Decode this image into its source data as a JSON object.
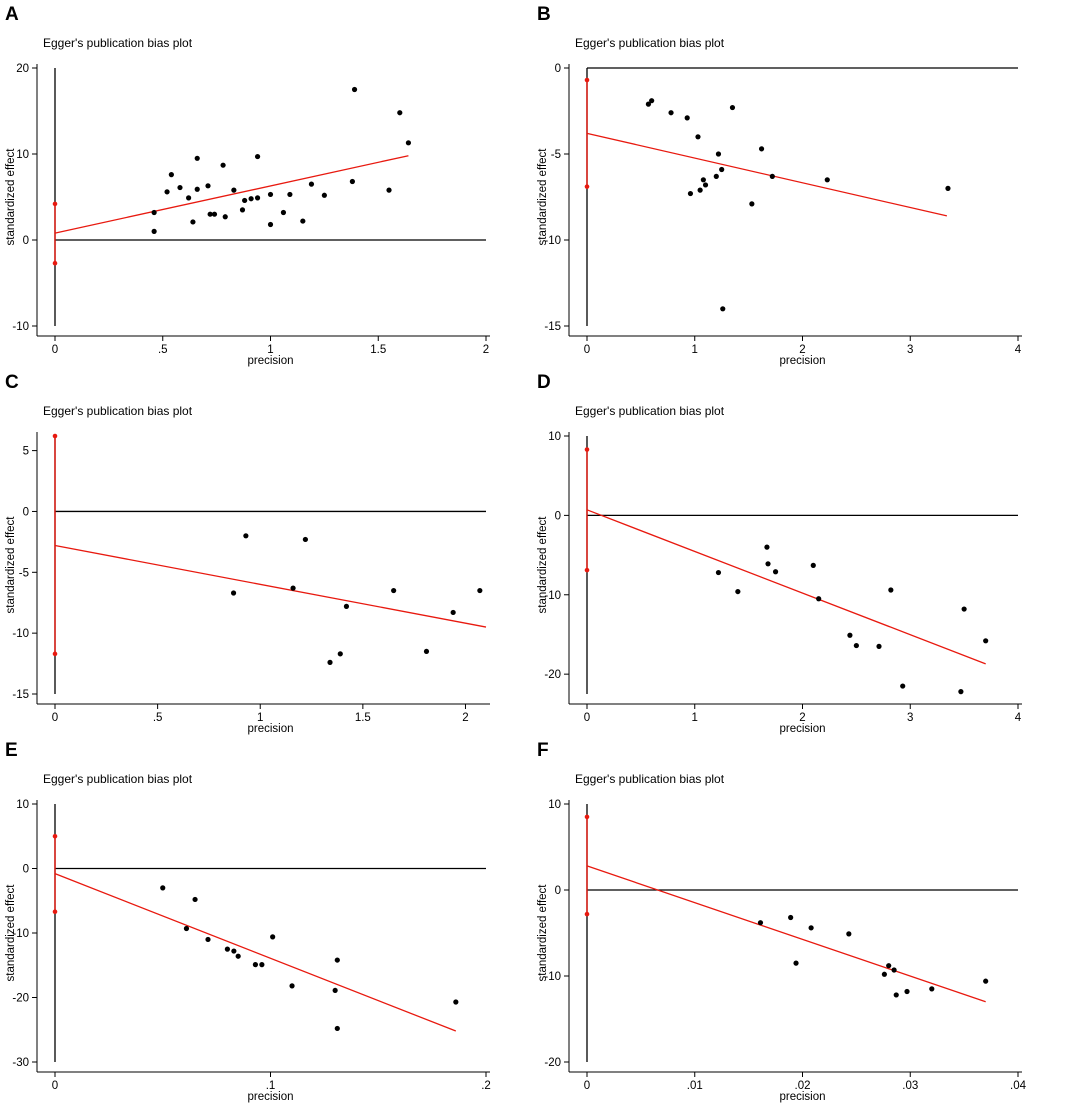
{
  "chart_data": [
    {
      "type": "scatter",
      "panel_label": "A",
      "title": "Egger's publication bias plot",
      "xlabel": "precision",
      "ylabel": "standardized effect",
      "xlim": [
        0,
        2
      ],
      "ylim": [
        -10,
        20
      ],
      "xticks": [
        {
          "v": 0,
          "label": "0"
        },
        {
          "v": 0.5,
          "label": ".5"
        },
        {
          "v": 1,
          "label": "1"
        },
        {
          "v": 1.5,
          "label": "1.5"
        },
        {
          "v": 2,
          "label": "2"
        }
      ],
      "yticks": [
        {
          "v": -10,
          "label": "-10"
        },
        {
          "v": 0,
          "label": "0"
        },
        {
          "v": 10,
          "label": "10"
        },
        {
          "v": 20,
          "label": "20"
        }
      ],
      "vline": {
        "x": 0,
        "ymin": -10,
        "ymax": 20
      },
      "hline": {
        "y": 0,
        "xmin": 0,
        "xmax": 2
      },
      "ci": [
        -2.7,
        4.2
      ],
      "regression": {
        "x1": 0,
        "y1": 0.8,
        "x2": 1.64,
        "y2": 9.8
      },
      "points": [
        [
          0.46,
          1.0
        ],
        [
          0.46,
          3.2
        ],
        [
          0.52,
          5.6
        ],
        [
          0.54,
          7.6
        ],
        [
          0.58,
          6.1
        ],
        [
          0.62,
          4.9
        ],
        [
          0.64,
          2.1
        ],
        [
          0.66,
          5.9
        ],
        [
          0.66,
          9.5
        ],
        [
          0.71,
          6.3
        ],
        [
          0.72,
          3.0
        ],
        [
          0.74,
          3.0
        ],
        [
          0.78,
          8.7
        ],
        [
          0.79,
          2.7
        ],
        [
          0.83,
          5.8
        ],
        [
          0.87,
          3.5
        ],
        [
          0.88,
          4.6
        ],
        [
          0.91,
          4.8
        ],
        [
          0.94,
          4.9
        ],
        [
          0.94,
          9.7
        ],
        [
          1.0,
          1.8
        ],
        [
          1.0,
          5.3
        ],
        [
          1.06,
          3.2
        ],
        [
          1.09,
          5.3
        ],
        [
          1.15,
          2.2
        ],
        [
          1.19,
          6.5
        ],
        [
          1.25,
          5.2
        ],
        [
          1.38,
          6.8
        ],
        [
          1.39,
          17.5
        ],
        [
          1.55,
          5.8
        ],
        [
          1.6,
          14.8
        ],
        [
          1.64,
          11.3
        ]
      ]
    },
    {
      "type": "scatter",
      "panel_label": "B",
      "title": "Egger's publication bias plot",
      "xlabel": "precision",
      "ylabel": "standardized effect",
      "xlim": [
        0,
        4
      ],
      "ylim": [
        -15,
        0
      ],
      "xticks": [
        {
          "v": 0,
          "label": "0"
        },
        {
          "v": 1,
          "label": "1"
        },
        {
          "v": 2,
          "label": "2"
        },
        {
          "v": 3,
          "label": "3"
        },
        {
          "v": 4,
          "label": "4"
        }
      ],
      "yticks": [
        {
          "v": -15,
          "label": "-15"
        },
        {
          "v": -10,
          "label": "-10"
        },
        {
          "v": -5,
          "label": "-5"
        },
        {
          "v": 0,
          "label": "0"
        }
      ],
      "vline": {
        "x": 0,
        "ymin": -15,
        "ymax": 0
      },
      "hline": {
        "y": 0,
        "xmin": 0,
        "xmax": 4
      },
      "ci": [
        -6.9,
        -0.7
      ],
      "regression": {
        "x1": 0,
        "y1": -3.8,
        "x2": 3.34,
        "y2": -8.6
      },
      "points": [
        [
          0.57,
          -2.1
        ],
        [
          0.6,
          -1.9
        ],
        [
          0.78,
          -2.6
        ],
        [
          0.93,
          -2.9
        ],
        [
          0.96,
          -7.3
        ],
        [
          1.03,
          -4.0
        ],
        [
          1.05,
          -7.1
        ],
        [
          1.08,
          -6.5
        ],
        [
          1.1,
          -6.8
        ],
        [
          1.2,
          -6.3
        ],
        [
          1.22,
          -5.0
        ],
        [
          1.25,
          -5.9
        ],
        [
          1.26,
          -14.0
        ],
        [
          1.35,
          -2.3
        ],
        [
          1.53,
          -7.9
        ],
        [
          1.62,
          -4.7
        ],
        [
          1.72,
          -6.3
        ],
        [
          2.23,
          -6.5
        ],
        [
          3.35,
          -7.0
        ]
      ]
    },
    {
      "type": "scatter",
      "panel_label": "C",
      "title": "Egger's publication bias plot",
      "xlabel": "precision",
      "ylabel": "standardized effect",
      "xlim": [
        0,
        2.1
      ],
      "ylim": [
        -15,
        6.2
      ],
      "xticks": [
        {
          "v": 0,
          "label": "0"
        },
        {
          "v": 0.5,
          "label": ".5"
        },
        {
          "v": 1,
          "label": "1"
        },
        {
          "v": 1.5,
          "label": "1.5"
        },
        {
          "v": 2,
          "label": "2"
        }
      ],
      "yticks": [
        {
          "v": -15,
          "label": "-15"
        },
        {
          "v": -10,
          "label": "-10"
        },
        {
          "v": -5,
          "label": "-5"
        },
        {
          "v": 0,
          "label": "0"
        },
        {
          "v": 5,
          "label": "5"
        }
      ],
      "vline": {
        "x": 0,
        "ymin": -15,
        "ymax": 6.2
      },
      "hline": {
        "y": 0,
        "xmin": 0,
        "xmax": 2.1
      },
      "ci": [
        -11.7,
        6.2
      ],
      "regression": {
        "x1": 0,
        "y1": -2.8,
        "x2": 2.1,
        "y2": -9.5
      },
      "points": [
        [
          0.87,
          -6.7
        ],
        [
          0.93,
          -2.0
        ],
        [
          1.16,
          -6.3
        ],
        [
          1.22,
          -2.3
        ],
        [
          1.34,
          -12.4
        ],
        [
          1.39,
          -11.7
        ],
        [
          1.42,
          -7.8
        ],
        [
          1.65,
          -6.5
        ],
        [
          1.81,
          -11.5
        ],
        [
          1.94,
          -8.3
        ],
        [
          2.07,
          -6.5
        ]
      ]
    },
    {
      "type": "scatter",
      "panel_label": "D",
      "title": "Egger's publication bias plot",
      "xlabel": "precision",
      "ylabel": "standardized effect",
      "xlim": [
        0,
        4
      ],
      "ylim": [
        -22.5,
        10
      ],
      "xticks": [
        {
          "v": 0,
          "label": "0"
        },
        {
          "v": 1,
          "label": "1"
        },
        {
          "v": 2,
          "label": "2"
        },
        {
          "v": 3,
          "label": "3"
        },
        {
          "v": 4,
          "label": "4"
        }
      ],
      "yticks": [
        {
          "v": -20,
          "label": "-20"
        },
        {
          "v": -10,
          "label": "-10"
        },
        {
          "v": 0,
          "label": "0"
        },
        {
          "v": 10,
          "label": "10"
        }
      ],
      "vline": {
        "x": 0,
        "ymin": -22.5,
        "ymax": 10
      },
      "hline": {
        "y": 0,
        "xmin": 0,
        "xmax": 4
      },
      "ci": [
        -6.9,
        8.3
      ],
      "regression": {
        "x1": 0,
        "y1": 0.7,
        "x2": 3.7,
        "y2": -18.7
      },
      "points": [
        [
          1.22,
          -7.2
        ],
        [
          1.4,
          -9.6
        ],
        [
          1.67,
          -4.0
        ],
        [
          1.68,
          -6.1
        ],
        [
          1.75,
          -7.1
        ],
        [
          2.1,
          -6.3
        ],
        [
          2.15,
          -10.5
        ],
        [
          2.44,
          -15.1
        ],
        [
          2.5,
          -16.4
        ],
        [
          2.71,
          -16.5
        ],
        [
          2.82,
          -9.4
        ],
        [
          2.93,
          -21.5
        ],
        [
          3.47,
          -22.2
        ],
        [
          3.5,
          -11.8
        ],
        [
          3.7,
          -15.8
        ]
      ]
    },
    {
      "type": "scatter",
      "panel_label": "E",
      "title": "Egger's publication bias plot",
      "xlabel": "precision",
      "ylabel": "standardized effect",
      "xlim": [
        0,
        0.2
      ],
      "ylim": [
        -30,
        10
      ],
      "xticks": [
        {
          "v": 0,
          "label": "0"
        },
        {
          "v": 0.1,
          "label": ".1"
        },
        {
          "v": 0.2,
          "label": ".2"
        }
      ],
      "yticks": [
        {
          "v": -30,
          "label": "-30"
        },
        {
          "v": -20,
          "label": "-20"
        },
        {
          "v": -10,
          "label": "-10"
        },
        {
          "v": 0,
          "label": "0"
        },
        {
          "v": 10,
          "label": "10"
        }
      ],
      "vline": {
        "x": 0,
        "ymin": -30,
        "ymax": 10
      },
      "hline": {
        "y": 0,
        "xmin": 0,
        "xmax": 0.2
      },
      "ci": [
        -6.7,
        5.0
      ],
      "regression": {
        "x1": 0,
        "y1": -0.8,
        "x2": 0.186,
        "y2": -25.2
      },
      "points": [
        [
          0.05,
          -3.0
        ],
        [
          0.061,
          -9.3
        ],
        [
          0.065,
          -4.8
        ],
        [
          0.071,
          -11.0
        ],
        [
          0.08,
          -12.5
        ],
        [
          0.083,
          -12.8
        ],
        [
          0.085,
          -13.6
        ],
        [
          0.093,
          -14.9
        ],
        [
          0.096,
          -14.9
        ],
        [
          0.101,
          -10.6
        ],
        [
          0.11,
          -18.2
        ],
        [
          0.13,
          -18.9
        ],
        [
          0.131,
          -14.2
        ],
        [
          0.131,
          -24.8
        ],
        [
          0.186,
          -20.7
        ]
      ]
    },
    {
      "type": "scatter",
      "panel_label": "F",
      "title": "Egger's publication bias plot",
      "xlabel": "precision",
      "ylabel": "standardized effect",
      "xlim": [
        0,
        0.04
      ],
      "ylim": [
        -20,
        10
      ],
      "xticks": [
        {
          "v": 0,
          "label": "0"
        },
        {
          "v": 0.01,
          "label": ".01"
        },
        {
          "v": 0.02,
          "label": ".02"
        },
        {
          "v": 0.03,
          "label": ".03"
        },
        {
          "v": 0.04,
          "label": ".04"
        }
      ],
      "yticks": [
        {
          "v": -20,
          "label": "-20"
        },
        {
          "v": -10,
          "label": "-10"
        },
        {
          "v": 0,
          "label": "0"
        },
        {
          "v": 10,
          "label": "10"
        }
      ],
      "vline": {
        "x": 0,
        "ymin": -20,
        "ymax": 10
      },
      "hline": {
        "y": 0,
        "xmin": 0,
        "xmax": 0.04
      },
      "ci": [
        -2.8,
        8.5
      ],
      "regression": {
        "x1": 0,
        "y1": 2.8,
        "x2": 0.037,
        "y2": -13.0
      },
      "points": [
        [
          0.0161,
          -3.8
        ],
        [
          0.0189,
          -3.2
        ],
        [
          0.0194,
          -8.5
        ],
        [
          0.0208,
          -4.4
        ],
        [
          0.0243,
          -5.1
        ],
        [
          0.0276,
          -9.8
        ],
        [
          0.028,
          -8.8
        ],
        [
          0.0285,
          -9.3
        ],
        [
          0.0287,
          -12.2
        ],
        [
          0.0297,
          -11.8
        ],
        [
          0.032,
          -11.5
        ],
        [
          0.037,
          -10.6
        ]
      ]
    }
  ],
  "colors": {
    "points": "#000000",
    "regression": "#e8190f",
    "ci": "#e8190f",
    "axis": "#000000"
  }
}
